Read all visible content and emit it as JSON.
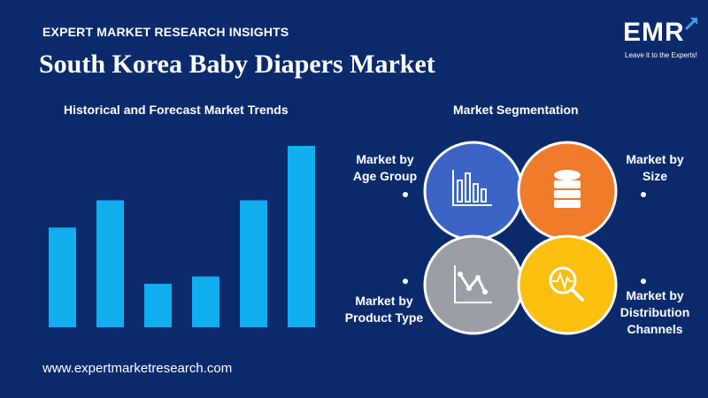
{
  "header": {
    "eyebrow": "EXPERT MARKET RESEARCH INSIGHTS",
    "title": "South Korea Baby Diapers Market"
  },
  "logo": {
    "text": "EMR",
    "tagline": "Leave it to the Experts!"
  },
  "chart_data": {
    "type": "bar",
    "title": "Historical and Forecast Market Trends",
    "categories": [
      "",
      "",
      "",
      "",
      "",
      ""
    ],
    "values": [
      55,
      70,
      24,
      28,
      70,
      100
    ],
    "ylim": [
      0,
      100
    ],
    "color": "#11aef0",
    "grid": false
  },
  "segmentation": {
    "title": "Market Segmentation",
    "segments": [
      {
        "label_lines": [
          "Market by",
          "Age Group"
        ],
        "color": "#3b64c6",
        "icon": "bar-chart-icon"
      },
      {
        "label_lines": [
          "Market by",
          "Size"
        ],
        "color": "#ef7b2b",
        "icon": "database-icon"
      },
      {
        "label_lines": [
          "Market by",
          "Product Type"
        ],
        "color": "#9b9ea4",
        "icon": "line-chart-icon"
      },
      {
        "label_lines": [
          "Market by",
          "Distribution",
          "Channels"
        ],
        "color": "#fbbf10",
        "icon": "magnifier-pulse-icon"
      }
    ]
  },
  "footer": {
    "url": "www.expertmarketresearch.com"
  }
}
